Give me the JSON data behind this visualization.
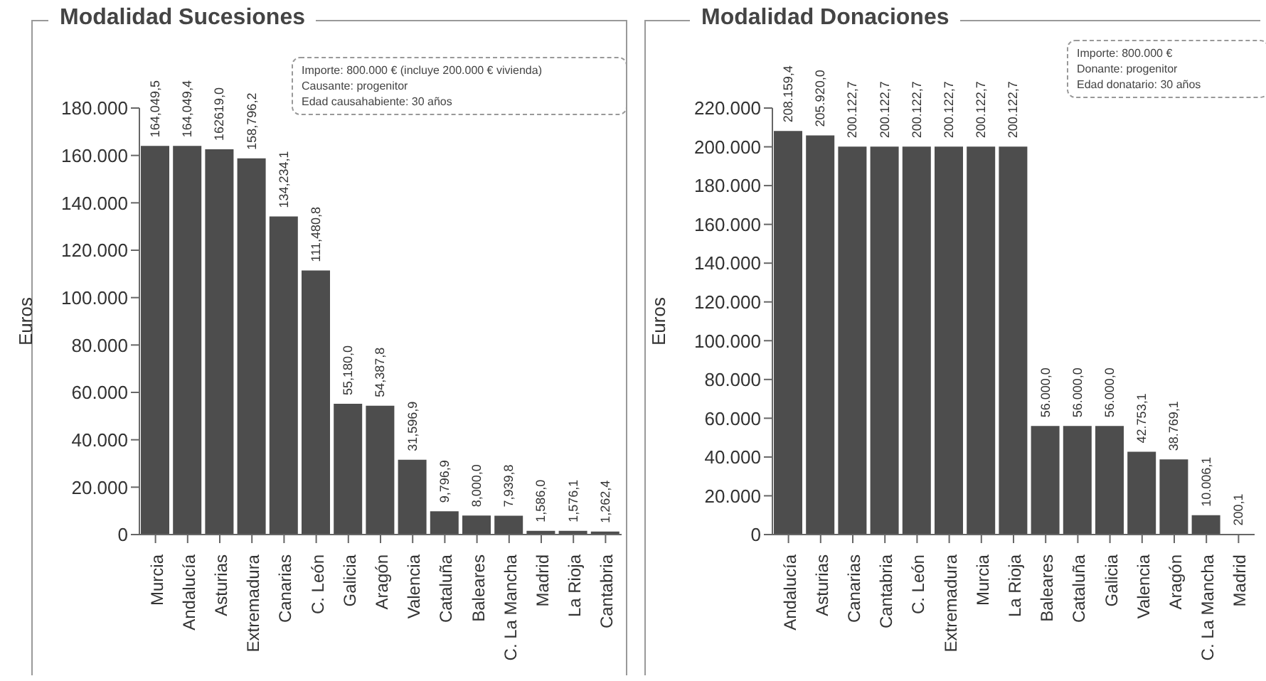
{
  "chart_data": [
    {
      "type": "bar",
      "title": "Modalidad Sucesiones",
      "ylabel": "Euros",
      "annotations": [
        "Importe: 800.000 € (incluye 200.000 € vivienda)",
        "Causante: progenitor",
        "Edad causahabiente: 30 años"
      ],
      "categories": [
        "Murcia",
        "Andalucía",
        "Asturias",
        "Extremadura",
        "Canarias",
        "C. León",
        "Galicia",
        "Aragón",
        "Valencia",
        "Cataluña",
        "Baleares",
        "C. La Mancha",
        "Madrid",
        "La Rioja",
        "Cantabria"
      ],
      "values": [
        164049.5,
        164049.4,
        162619.0,
        158796.2,
        134234.1,
        111480.8,
        55180.0,
        54387.8,
        31596.9,
        9796.9,
        8000.0,
        7939.8,
        1586.0,
        1576.1,
        1262.4
      ],
      "value_labels": [
        "164,049,5",
        "164,049,4",
        "162619,0",
        "158,796,2",
        "134,234,1",
        "111,480,8",
        "55,180,0",
        "54,387,8",
        "31,596,9",
        "9,796,9",
        "8,000,0",
        "7,939,8",
        "1,586,0",
        "1,576,1",
        "1,262,4"
      ],
      "color": "#4d4d4d",
      "ylim": [
        0,
        180000
      ],
      "yticks": [
        {
          "value": 0,
          "label": "0"
        },
        {
          "value": 20000,
          "label": "20.000"
        },
        {
          "value": 40000,
          "label": "40.000"
        },
        {
          "value": 60000,
          "label": "60.000"
        },
        {
          "value": 80000,
          "label": "80.000"
        },
        {
          "value": 100000,
          "label": "100.000"
        },
        {
          "value": 120000,
          "label": "120.000"
        },
        {
          "value": 140000,
          "label": "140.000"
        },
        {
          "value": 160000,
          "label": "160.000"
        },
        {
          "value": 180000,
          "label": "180.000"
        }
      ],
      "grid": false
    },
    {
      "type": "bar",
      "title": "Modalidad Donaciones",
      "ylabel": "Euros",
      "annotations": [
        "Importe: 800.000 €",
        "Donante: progenitor",
        "Edad donatario: 30 años"
      ],
      "categories": [
        "Andalucía",
        "Asturias",
        "Canarias",
        "Cantabria",
        "C. León",
        "Extremadura",
        "Murcia",
        "La Rioja",
        "Baleares",
        "Cataluña",
        "Galicia",
        "Valencia",
        "Aragón",
        "C. La Mancha",
        "Madrid"
      ],
      "values": [
        208159.4,
        205920.0,
        200122.7,
        200122.7,
        200122.7,
        200122.7,
        200122.7,
        200122.7,
        56000.0,
        56000.0,
        56000.0,
        42753.1,
        38769.1,
        10006.1,
        200.1
      ],
      "value_labels": [
        "208.159,4",
        "205.920,0",
        "200.122,7",
        "200.122,7",
        "200.122,7",
        "200.122,7",
        "200.122,7",
        "200.122,7",
        "56.000,0",
        "56.000,0",
        "56.000,0",
        "42.753,1",
        "38.769,1",
        "10.006,1",
        "200,1"
      ],
      "color": "#4d4d4d",
      "ylim": [
        0,
        220000
      ],
      "yticks": [
        {
          "value": 0,
          "label": "0"
        },
        {
          "value": 20000,
          "label": "20.000"
        },
        {
          "value": 40000,
          "label": "40.000"
        },
        {
          "value": 60000,
          "label": "60.000"
        },
        {
          "value": 80000,
          "label": "80.000"
        },
        {
          "value": 100000,
          "label": "100.000"
        },
        {
          "value": 120000,
          "label": "120.000"
        },
        {
          "value": 140000,
          "label": "140.000"
        },
        {
          "value": 160000,
          "label": "160.000"
        },
        {
          "value": 180000,
          "label": "180.000"
        },
        {
          "value": 200000,
          "label": "200.000"
        },
        {
          "value": 220000,
          "label": "220.000"
        }
      ],
      "grid": false
    }
  ]
}
